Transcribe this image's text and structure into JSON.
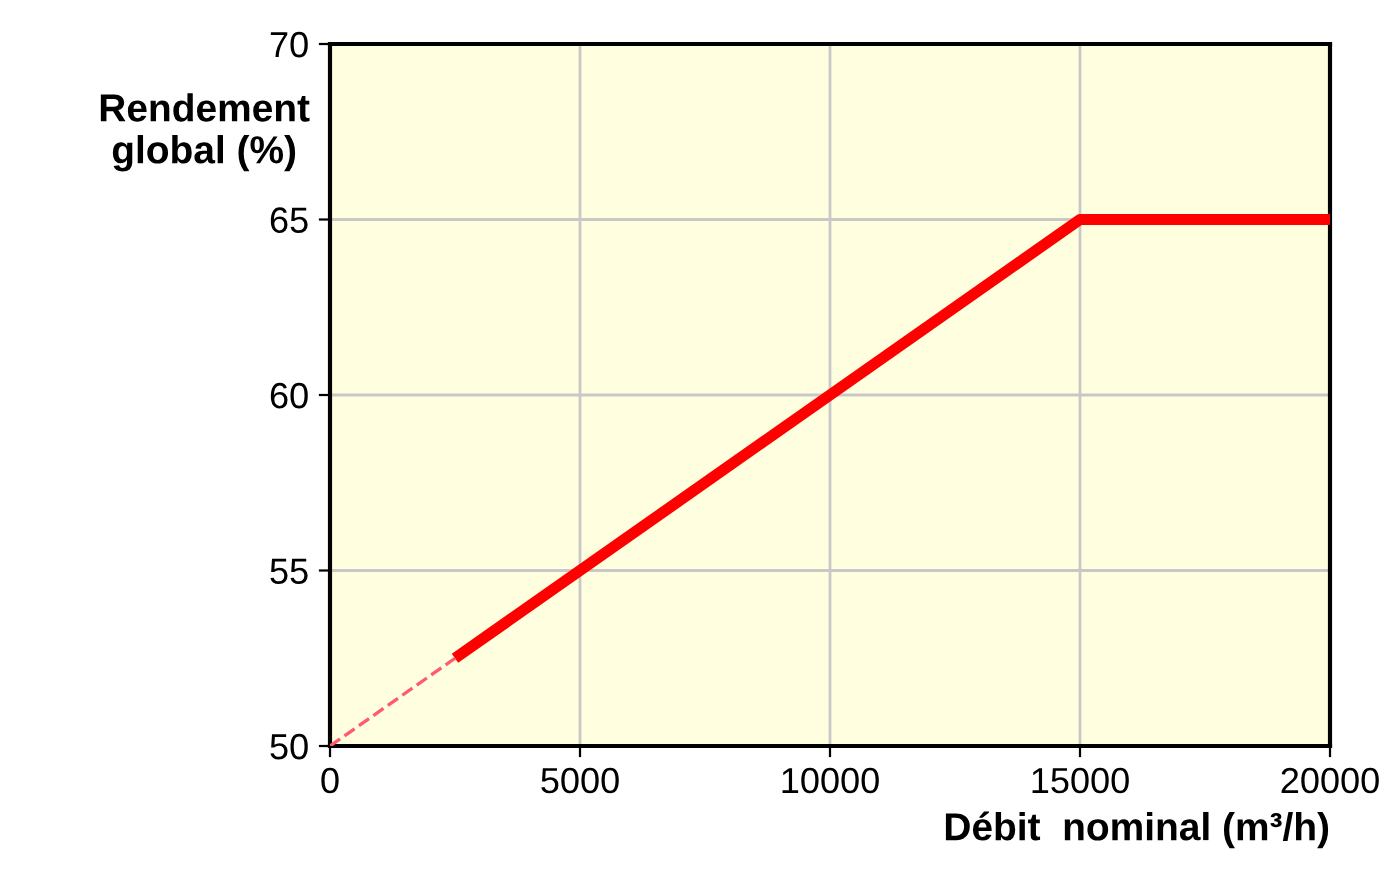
{
  "chart_data": {
    "type": "line",
    "ylabel": "Rendement\nglobal (%)",
    "xlabel": "Débit  nominal (m³/h)",
    "series": [
      {
        "color": "#ff0000",
        "line_style": "solid",
        "x": [
          2500,
          15000,
          20000
        ],
        "values": [
          52.5,
          65,
          65
        ]
      },
      {
        "color": "#ff5a6e",
        "line_style": "dashed",
        "x": [
          0,
          2500
        ],
        "values": [
          50,
          52.5
        ]
      }
    ],
    "xlim": [
      0,
      20000
    ],
    "xticks": [
      0,
      5000,
      10000,
      15000,
      20000
    ],
    "ylim": [
      50,
      70
    ],
    "yticks": [
      50,
      55,
      60,
      65,
      70
    ],
    "grid": true,
    "marker": "none"
  }
}
